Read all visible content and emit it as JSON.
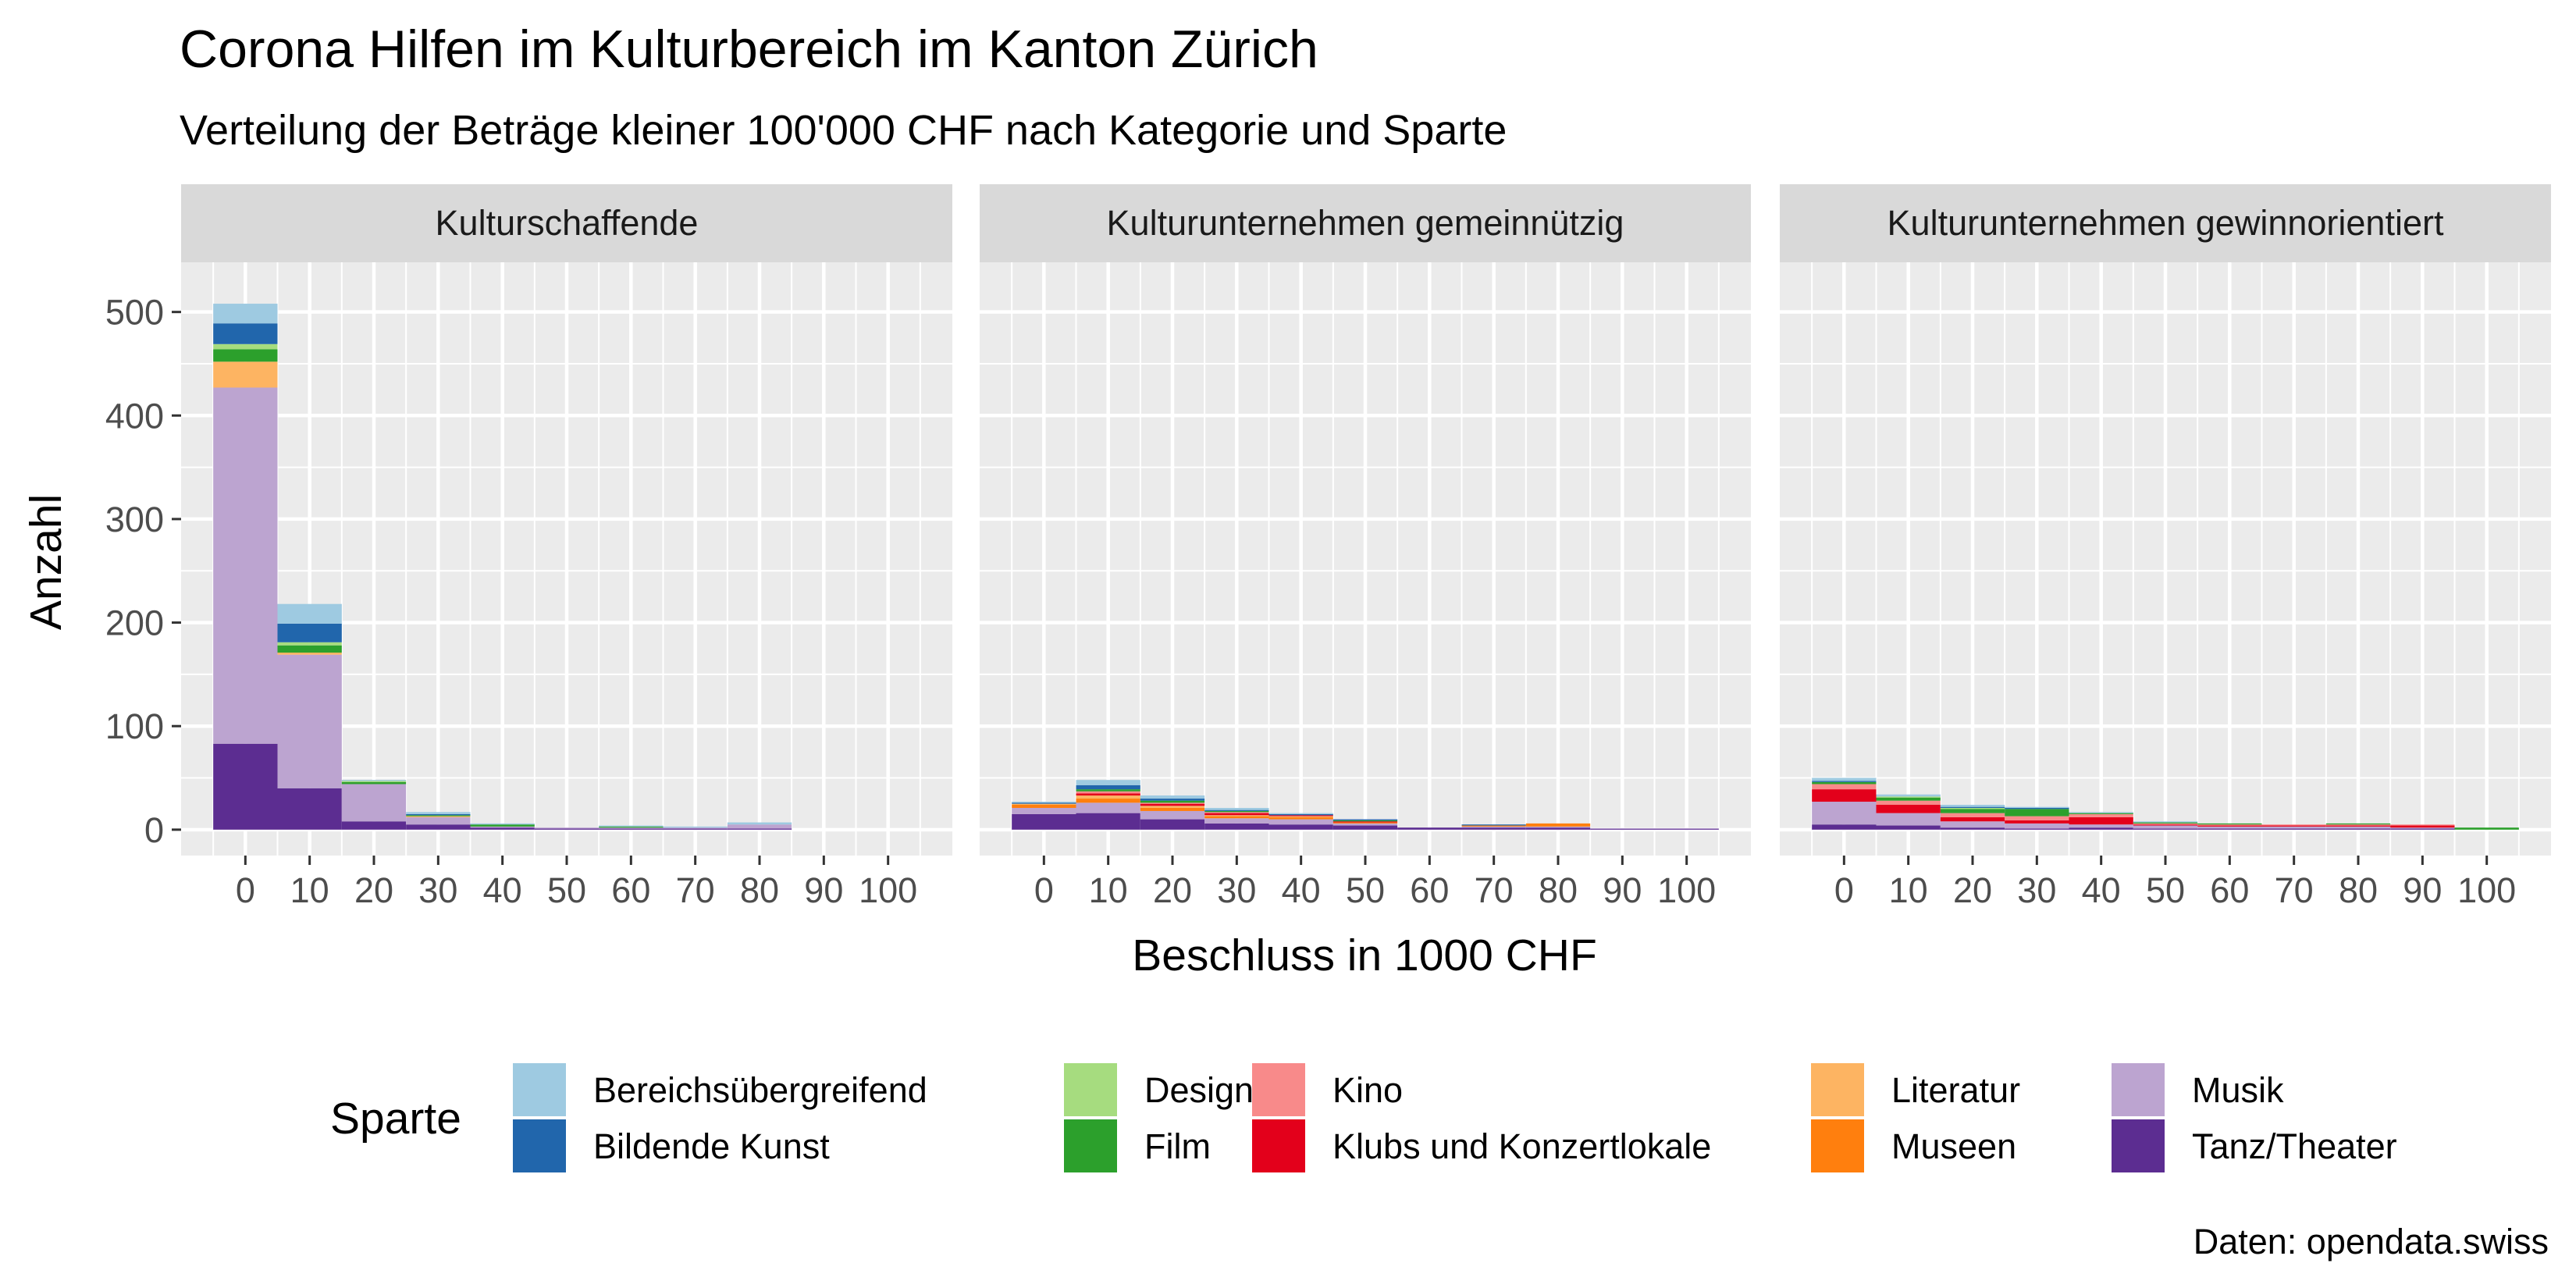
{
  "chart_data": {
    "type": "bar",
    "stacked": true,
    "title": "Corona Hilfen im Kulturbereich im Kanton Zürich",
    "subtitle": "Verteilung der Beträge kleiner 100'000 CHF nach Kategorie und Sparte",
    "xlabel": "Beschluss in 1000 CHF",
    "ylabel": "Anzahl",
    "caption": "Daten: opendata.swiss",
    "legend_title": "Sparte",
    "legend_position": "bottom",
    "grid": true,
    "x_ticks": [
      0,
      10,
      20,
      30,
      40,
      50,
      60,
      70,
      80,
      90,
      100
    ],
    "xlim": [
      -10,
      110
    ],
    "y_ticks": [
      0,
      100,
      200,
      300,
      400,
      500
    ],
    "ylim": [
      -25,
      548
    ],
    "bin_width": 10,
    "categories": [
      0,
      10,
      20,
      30,
      40,
      50,
      60,
      70,
      80,
      90,
      100
    ],
    "sparten": [
      {
        "name": "Bereichsübergreifend",
        "color": "#9ecae1"
      },
      {
        "name": "Bildende Kunst",
        "color": "#2166ac"
      },
      {
        "name": "Design",
        "color": "#a6dc7f"
      },
      {
        "name": "Film",
        "color": "#2ca02c"
      },
      {
        "name": "Kino",
        "color": "#f88a8a"
      },
      {
        "name": "Klubs und Konzertlokale",
        "color": "#e3001b"
      },
      {
        "name": "Literatur",
        "color": "#fdb462"
      },
      {
        "name": "Museen",
        "color": "#ff7f0e"
      },
      {
        "name": "Musik",
        "color": "#bca4d0"
      },
      {
        "name": "Tanz/Theater",
        "color": "#5c2d91"
      }
    ],
    "panels": [
      {
        "label": "Kulturschaffende",
        "series": [
          {
            "name": "Tanz/Theater",
            "values": [
              83,
              40,
              8,
              5,
              2,
              1,
              1,
              1,
              1,
              0,
              0
            ]
          },
          {
            "name": "Musik",
            "values": [
              344,
              129,
              36,
              7,
              1,
              1,
              1,
              1,
              4,
              0,
              0
            ]
          },
          {
            "name": "Museen",
            "values": [
              0,
              0,
              0,
              0,
              0,
              0,
              0,
              0,
              0,
              0,
              0
            ]
          },
          {
            "name": "Literatur",
            "values": [
              25,
              2,
              0,
              1,
              0,
              0,
              0,
              0,
              0,
              0,
              0
            ]
          },
          {
            "name": "Klubs und Konzertlokale",
            "values": [
              0,
              0,
              0,
              0,
              0,
              0,
              0,
              0,
              0,
              0,
              0
            ]
          },
          {
            "name": "Kino",
            "values": [
              0,
              0,
              0,
              0,
              0,
              0,
              0,
              0,
              0,
              0,
              0
            ]
          },
          {
            "name": "Film",
            "values": [
              12,
              7,
              2,
              1,
              2,
              0,
              1,
              0,
              0,
              0,
              0
            ]
          },
          {
            "name": "Design",
            "values": [
              5,
              3,
              1,
              0,
              0,
              0,
              0,
              0,
              0,
              0,
              0
            ]
          },
          {
            "name": "Bildende Kunst",
            "values": [
              20,
              18,
              0,
              1,
              0,
              0,
              0,
              0,
              0,
              0,
              0
            ]
          },
          {
            "name": "Bereichsübergreifend",
            "values": [
              19,
              19,
              1,
              2,
              1,
              0,
              1,
              1,
              2,
              0,
              0
            ]
          }
        ]
      },
      {
        "label": "Kulturunternehmen gemeinnützig",
        "series": [
          {
            "name": "Tanz/Theater",
            "values": [
              15,
              16,
              10,
              6,
              5,
              4,
              2,
              2,
              2,
              1,
              1
            ]
          },
          {
            "name": "Musik",
            "values": [
              6,
              10,
              8,
              5,
              5,
              2,
              0,
              1,
              1,
              0,
              0
            ]
          },
          {
            "name": "Museen",
            "values": [
              3,
              4,
              3,
              2,
              2,
              1,
              0,
              1,
              3,
              0,
              0
            ]
          },
          {
            "name": "Literatur",
            "values": [
              1,
              3,
              2,
              1,
              1,
              0,
              0,
              0,
              0,
              0,
              0
            ]
          },
          {
            "name": "Klubs und Konzertlokale",
            "values": [
              0,
              2,
              2,
              2,
              1,
              1,
              0,
              0,
              0,
              0,
              0
            ]
          },
          {
            "name": "Kino",
            "values": [
              0,
              2,
              1,
              1,
              0,
              0,
              0,
              0,
              0,
              0,
              0
            ]
          },
          {
            "name": "Film",
            "values": [
              0,
              2,
              2,
              1,
              0,
              1,
              0,
              0,
              0,
              0,
              0
            ]
          },
          {
            "name": "Design",
            "values": [
              0,
              0,
              0,
              0,
              0,
              0,
              0,
              0,
              0,
              0,
              0
            ]
          },
          {
            "name": "Bildende Kunst",
            "values": [
              1,
              4,
              2,
              1,
              1,
              1,
              0,
              1,
              0,
              0,
              0
            ]
          },
          {
            "name": "Bereichsübergreifend",
            "values": [
              1,
              5,
              3,
              2,
              1,
              0,
              0,
              0,
              0,
              0,
              0
            ]
          }
        ]
      },
      {
        "label": "Kulturunternehmen gewinnorientiert",
        "series": [
          {
            "name": "Tanz/Theater",
            "values": [
              5,
              4,
              2,
              1,
              2,
              1,
              1,
              1,
              1,
              1,
              0
            ]
          },
          {
            "name": "Musik",
            "values": [
              22,
              12,
              6,
              5,
              3,
              3,
              2,
              2,
              2,
              1,
              0
            ]
          },
          {
            "name": "Museen",
            "values": [
              0,
              0,
              0,
              0,
              0,
              0,
              0,
              0,
              0,
              0,
              0
            ]
          },
          {
            "name": "Literatur",
            "values": [
              0,
              0,
              0,
              0,
              0,
              0,
              0,
              0,
              0,
              0,
              0
            ]
          },
          {
            "name": "Klubs und Konzertlokale",
            "values": [
              12,
              8,
              4,
              3,
              7,
              1,
              1,
              1,
              1,
              2,
              0
            ]
          },
          {
            "name": "Kino",
            "values": [
              5,
              4,
              4,
              4,
              3,
              1,
              1,
              1,
              1,
              1,
              0
            ]
          },
          {
            "name": "Film",
            "values": [
              2,
              3,
              4,
              7,
              1,
              1,
              1,
              0,
              1,
              0,
              2
            ]
          },
          {
            "name": "Design",
            "values": [
              0,
              1,
              1,
              0,
              0,
              0,
              0,
              0,
              0,
              0,
              0
            ]
          },
          {
            "name": "Bildende Kunst",
            "values": [
              1,
              0,
              1,
              1,
              0,
              0,
              0,
              0,
              0,
              0,
              0
            ]
          },
          {
            "name": "Bereichsübergreifend",
            "values": [
              3,
              2,
              2,
              1,
              1,
              1,
              0,
              0,
              0,
              0,
              0
            ]
          }
        ]
      }
    ]
  }
}
